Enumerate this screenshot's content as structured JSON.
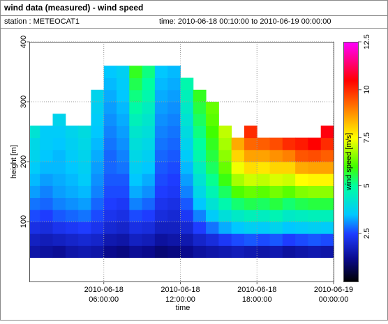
{
  "chart_data": {
    "type": "heatmap",
    "title": "wind data (measured) - wind speed",
    "station": "station : METEOCAT1",
    "time_range": "time: 2010-06-18 00:10:00 to 2010-06-19 00:00:00",
    "x_label": "time",
    "y_label": "height [m]",
    "colorbar_label": "wind speed [m/s]",
    "xlim": [
      "2010-06-18 00:10:00",
      "2010-06-19 00:00:00"
    ],
    "xticks": [
      "2010-06-18 06:00:00",
      "2010-06-18 12:00:00",
      "2010-06-18 18:00:00",
      "2010-06-19 00:00:00"
    ],
    "ylim": [
      0,
      400
    ],
    "yticks": [
      100,
      200,
      300,
      400
    ],
    "clim": [
      0,
      12.5
    ],
    "cticks": [
      2.5,
      5,
      7.5,
      10,
      12.5
    ],
    "grid": true,
    "colorscale": [
      {
        "value": 0,
        "color": "#000000"
      },
      {
        "value": 1.2,
        "color": "#0a0a8c"
      },
      {
        "value": 2.5,
        "color": "#1e3cff"
      },
      {
        "value": 3.5,
        "color": "#00c8ff"
      },
      {
        "value": 5,
        "color": "#00ffa0"
      },
      {
        "value": 6,
        "color": "#40ff00"
      },
      {
        "value": 7.5,
        "color": "#ffff00"
      },
      {
        "value": 9,
        "color": "#ff8000"
      },
      {
        "value": 10.5,
        "color": "#ff0000"
      },
      {
        "value": 11.5,
        "color": "#ff0080"
      },
      {
        "value": 12.5,
        "color": "#ff00ff"
      }
    ],
    "x": [
      "2010-06-18 00:30:00",
      "2010-06-18 01:30:00",
      "2010-06-18 02:30:00",
      "2010-06-18 03:30:00",
      "2010-06-18 04:30:00",
      "2010-06-18 05:30:00",
      "2010-06-18 06:30:00",
      "2010-06-18 07:30:00",
      "2010-06-18 08:30:00",
      "2010-06-18 09:30:00",
      "2010-06-18 10:30:00",
      "2010-06-18 11:30:00",
      "2010-06-18 12:30:00",
      "2010-06-18 13:30:00",
      "2010-06-18 14:30:00",
      "2010-06-18 15:30:00",
      "2010-06-18 16:30:00",
      "2010-06-18 17:30:00",
      "2010-06-18 18:30:00",
      "2010-06-18 19:30:00",
      "2010-06-18 20:30:00",
      "2010-06-18 21:30:00",
      "2010-06-18 22:30:00",
      "2010-06-18 23:30:00"
    ],
    "y": [
      50,
      70,
      90,
      110,
      130,
      150,
      170,
      190,
      210,
      230,
      250,
      270,
      290,
      310,
      330,
      350
    ],
    "values": [
      [
        1.5,
        1.8,
        2.2,
        2.6,
        2.9,
        3.2,
        3.4,
        3.6,
        3.8,
        3.9,
        4.2,
        null,
        null,
        null,
        null,
        null
      ],
      [
        1.4,
        1.7,
        2.1,
        2.5,
        2.8,
        3.0,
        3.2,
        3.4,
        3.5,
        3.6,
        3.6,
        null,
        null,
        null,
        null,
        null
      ],
      [
        1.3,
        1.8,
        2.3,
        2.7,
        3.0,
        3.2,
        3.3,
        3.4,
        3.4,
        3.5,
        3.6,
        3.8,
        null,
        null,
        null,
        null
      ],
      [
        1.5,
        1.9,
        2.4,
        2.8,
        3.1,
        3.3,
        3.4,
        3.5,
        3.6,
        3.7,
        3.8,
        null,
        null,
        null,
        null,
        null
      ],
      [
        1.6,
        2.0,
        2.5,
        2.9,
        3.2,
        3.4,
        3.6,
        3.7,
        3.8,
        3.9,
        4.0,
        null,
        null,
        null,
        null,
        null
      ],
      [
        1.5,
        1.9,
        2.3,
        2.6,
        2.8,
        3.0,
        3.1,
        3.2,
        3.3,
        3.4,
        3.5,
        3.6,
        3.7,
        3.8,
        null,
        null
      ],
      [
        1.2,
        1.6,
        2.0,
        2.3,
        2.5,
        2.6,
        2.7,
        2.8,
        2.8,
        2.9,
        3.0,
        3.1,
        3.2,
        3.3,
        3.4,
        3.5
      ],
      [
        1.1,
        1.5,
        1.9,
        2.2,
        2.4,
        2.6,
        2.7,
        2.9,
        3.0,
        3.1,
        3.2,
        3.3,
        3.4,
        3.5,
        3.6,
        3.7
      ],
      [
        1.3,
        1.8,
        2.2,
        2.6,
        3.0,
        3.3,
        3.5,
        3.7,
        3.9,
        4.1,
        4.3,
        4.6,
        4.9,
        5.2,
        5.5,
        5.8
      ],
      [
        1.2,
        1.7,
        2.1,
        2.5,
        2.8,
        3.1,
        3.3,
        3.5,
        3.7,
        3.9,
        4.1,
        4.3,
        4.5,
        4.8,
        5.0,
        5.2
      ],
      [
        1.0,
        1.4,
        1.8,
        2.1,
        2.3,
        2.5,
        2.6,
        2.7,
        2.8,
        2.9,
        3.0,
        3.1,
        3.2,
        3.3,
        3.4,
        3.5
      ],
      [
        1.1,
        1.5,
        1.8,
        2.0,
        2.2,
        2.4,
        2.5,
        2.6,
        2.7,
        2.8,
        2.9,
        3.0,
        3.1,
        3.2,
        3.3,
        3.4
      ],
      [
        1.2,
        1.6,
        2.0,
        2.4,
        2.7,
        3.0,
        3.2,
        3.4,
        3.6,
        3.8,
        4.0,
        4.2,
        4.4,
        4.6,
        4.8,
        null
      ],
      [
        1.4,
        1.9,
        2.5,
        3.0,
        3.5,
        3.9,
        4.2,
        4.5,
        4.8,
        5.0,
        5.2,
        5.4,
        5.6,
        5.8,
        null,
        null
      ],
      [
        1.5,
        2.1,
        2.9,
        3.6,
        4.2,
        4.7,
        5.1,
        5.4,
        5.6,
        5.8,
        6.0,
        6.2,
        6.3,
        null,
        null,
        null
      ],
      [
        1.6,
        2.4,
        3.3,
        4.1,
        4.8,
        5.4,
        5.9,
        6.3,
        6.6,
        6.8,
        7.0,
        null,
        null,
        null,
        null,
        null
      ],
      [
        1.7,
        2.6,
        3.5,
        4.4,
        5.3,
        6.1,
        6.8,
        7.4,
        8.0,
        8.5,
        null,
        null,
        null,
        null,
        null,
        null
      ],
      [
        1.6,
        2.7,
        3.7,
        4.6,
        5.5,
        6.3,
        7.1,
        7.9,
        8.6,
        9.3,
        10.0,
        null,
        null,
        null,
        null,
        null
      ],
      [
        1.5,
        2.6,
        3.6,
        4.5,
        5.4,
        6.2,
        7.0,
        7.8,
        8.6,
        9.4,
        null,
        null,
        null,
        null,
        null,
        null
      ],
      [
        1.6,
        2.7,
        3.8,
        4.7,
        5.6,
        6.4,
        7.2,
        8.0,
        8.8,
        9.6,
        null,
        null,
        null,
        null,
        null,
        null
      ],
      [
        1.4,
        2.5,
        3.5,
        4.4,
        5.3,
        6.2,
        7.1,
        8.0,
        9.0,
        10.0,
        null,
        null,
        null,
        null,
        null,
        null
      ],
      [
        1.5,
        2.6,
        3.6,
        4.5,
        5.5,
        6.5,
        7.5,
        8.5,
        9.5,
        10.2,
        null,
        null,
        null,
        null,
        null,
        null
      ],
      [
        1.6,
        2.7,
        3.7,
        4.6,
        5.6,
        6.6,
        7.6,
        8.6,
        9.6,
        10.5,
        null,
        null,
        null,
        null,
        null,
        null
      ],
      [
        1.5,
        2.6,
        3.6,
        4.6,
        5.6,
        6.6,
        7.6,
        8.6,
        9.4,
        10.0,
        10.6,
        null,
        null,
        null,
        null,
        null
      ]
    ]
  }
}
